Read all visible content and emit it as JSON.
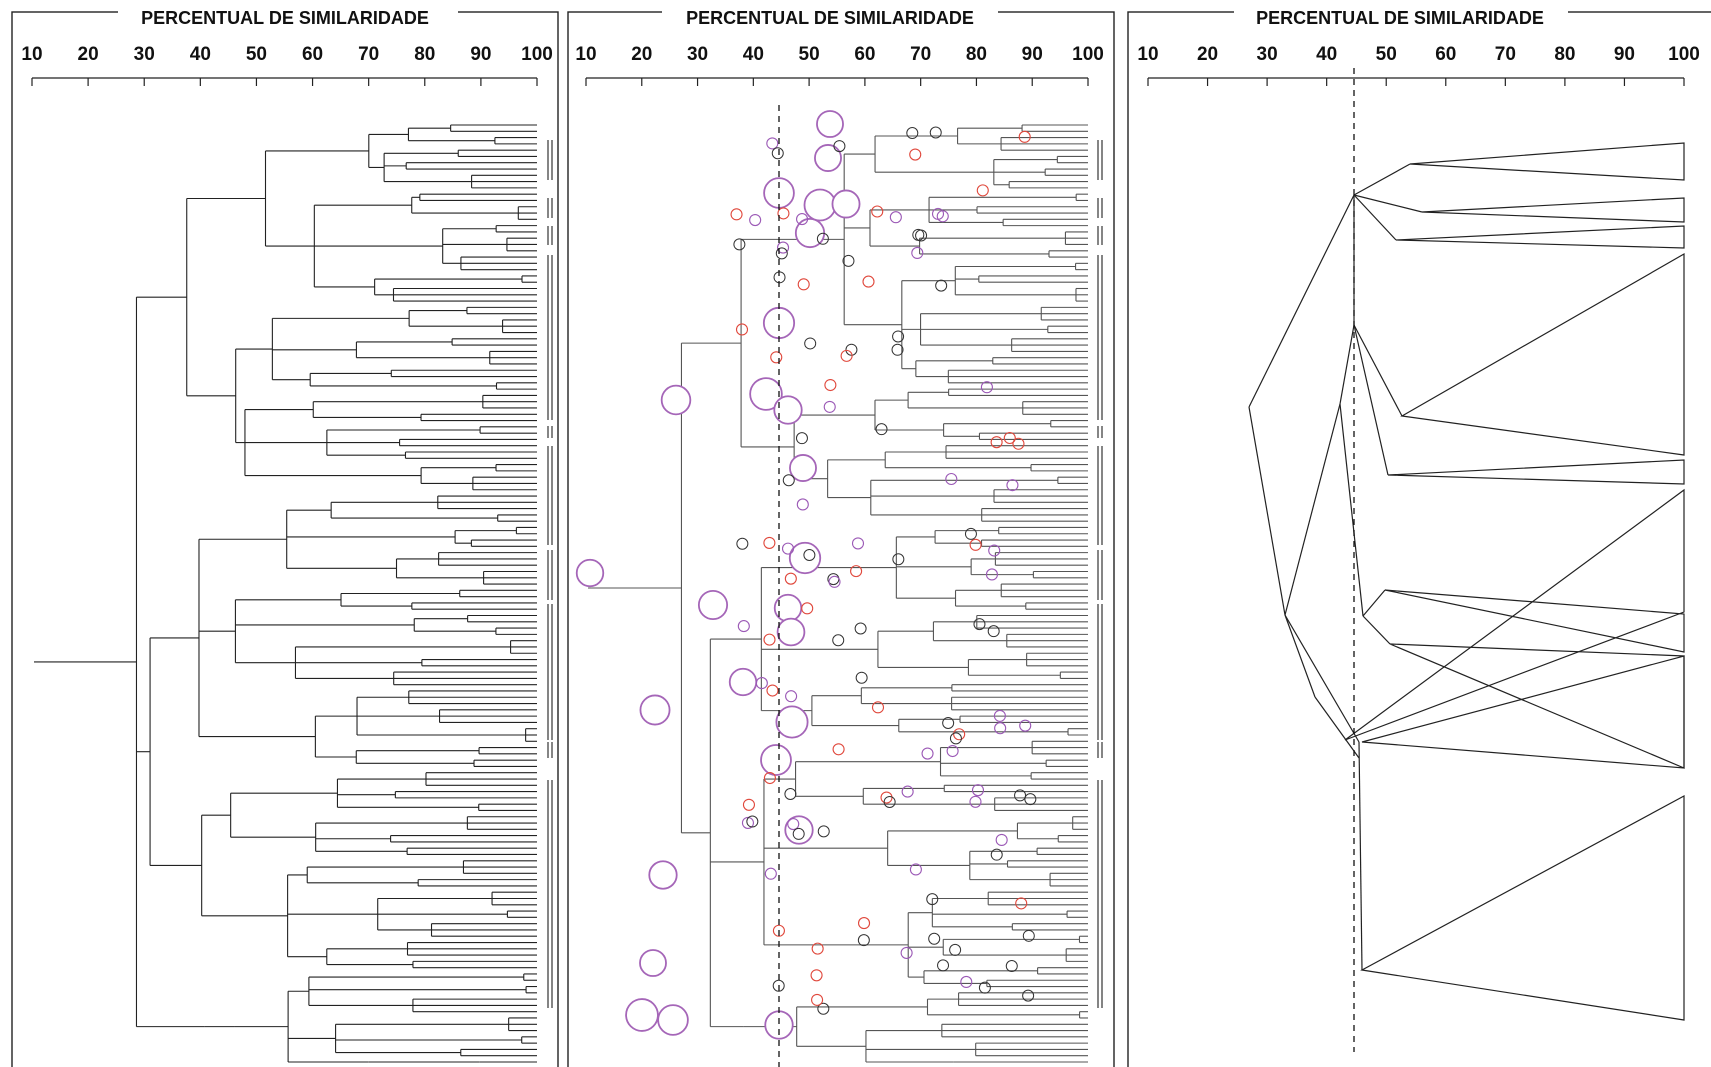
{
  "panels": [
    {
      "title": "PERCENTUAL DE SIMILARIDADE",
      "ticks": [
        "10",
        "20",
        "30",
        "40",
        "50",
        "60",
        "70",
        "80",
        "90",
        "100"
      ]
    },
    {
      "title": "PERCENTUAL DE SIMILARIDADE",
      "ticks": [
        "10",
        "20",
        "30",
        "40",
        "50",
        "60",
        "70",
        "80",
        "90",
        "100"
      ]
    },
    {
      "title": "PERCENTUAL DE SIMILARIDADE",
      "ticks": [
        "10",
        "20",
        "30",
        "40",
        "50",
        "60",
        "70",
        "80",
        "90",
        "100"
      ]
    }
  ],
  "cut_level_percent": 45,
  "colors": {
    "big_circle": "#a566b8",
    "red_node": "#e0483c",
    "purple_node": "#9b59b6",
    "black_node": "#333333"
  }
}
